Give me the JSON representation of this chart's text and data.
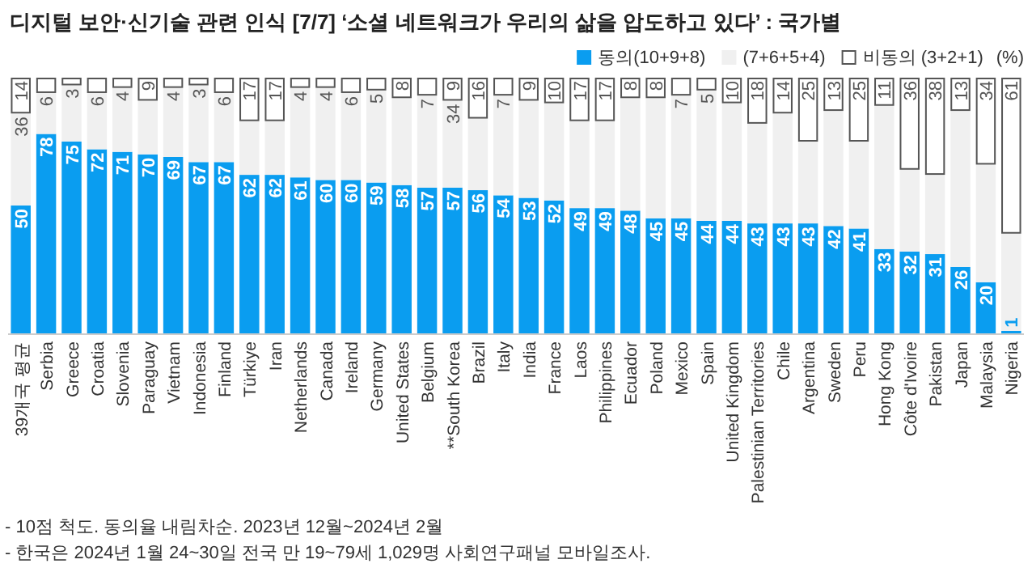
{
  "chart_data": {
    "type": "bar",
    "stacked": true,
    "title": "디지털 보안·신기술 관련 인식 [7/7] ‘소셜 네트워크가 우리의 삶을 압도하고 있다’ : 국가별",
    "legend_title": "(%)",
    "legend": "top right",
    "tick_labels": "x",
    "categories": [
      "39개국 평균",
      "Serbia",
      "Greece",
      "Croatia",
      "Slovenia",
      "Paraguay",
      "Vietnam",
      "Indonesia",
      "Finland",
      "Türkiye",
      "Iran",
      "Netherlands",
      "Canada",
      "Ireland",
      "Germany",
      "United States",
      "Belgium",
      "**South Korea",
      "Brazil",
      "Italy",
      "India",
      "France",
      "Laos",
      "Philippines",
      "Ecuador",
      "Poland",
      "Mexico",
      "Spain",
      "United Kingdom",
      "Palestinian Territories",
      "Chile",
      "Argentina",
      "Sweden",
      "Peru",
      "Hong Kong",
      "Côte d'Ivoire",
      "Pakistan",
      "Japan",
      "Malaysia",
      "Nigeria"
    ],
    "series": [
      {
        "name": "동의(10+9+8)",
        "color": "#0a9df0",
        "values": [
          50,
          78,
          75,
          72,
          71,
          70,
          69,
          67,
          67,
          62,
          62,
          61,
          60,
          60,
          59,
          58,
          57,
          57,
          56,
          54,
          53,
          52,
          49,
          49,
          48,
          45,
          45,
          44,
          44,
          43,
          43,
          43,
          42,
          41,
          33,
          32,
          31,
          26,
          20,
          1
        ],
        "value_labels": [
          "50",
          "78",
          "75",
          "72",
          "71",
          "70",
          "69",
          "67",
          "67",
          "62",
          "62",
          "61",
          "60",
          "60",
          "59",
          "58",
          "57",
          "57",
          "56",
          "54",
          "53",
          "52",
          "49",
          "49",
          "48",
          "45",
          "45",
          "44",
          "44",
          "43",
          "43",
          "43",
          "42",
          "41",
          "33",
          "32",
          "31",
          "26",
          "20",
          "1"
        ]
      },
      {
        "name": "(7+6+5+4)",
        "color": "#f0f0f0",
        "values": [
          36,
          16,
          22,
          22,
          25,
          21,
          27,
          30,
          27,
          21,
          21,
          35,
          36,
          34,
          36,
          34,
          36,
          34,
          28,
          39,
          38,
          38,
          34,
          34,
          44,
          47,
          48,
          51,
          46,
          39,
          43,
          32,
          45,
          34,
          56,
          32,
          31,
          61,
          46,
          38
        ],
        "value_labels": [
          "36",
          null,
          null,
          null,
          null,
          null,
          null,
          null,
          null,
          null,
          null,
          null,
          null,
          null,
          null,
          null,
          null,
          "34",
          null,
          null,
          null,
          null,
          null,
          null,
          null,
          null,
          null,
          null,
          null,
          null,
          null,
          null,
          null,
          null,
          null,
          null,
          null,
          null,
          null,
          null
        ]
      },
      {
        "name": "비동의 (3+2+1)",
        "color": "#ffffff",
        "values": [
          14,
          6,
          3,
          6,
          4,
          9,
          4,
          3,
          6,
          17,
          17,
          4,
          4,
          6,
          5,
          8,
          7,
          9,
          16,
          7,
          9,
          10,
          17,
          17,
          8,
          8,
          7,
          5,
          10,
          18,
          14,
          25,
          13,
          25,
          11,
          36,
          38,
          13,
          34,
          61
        ],
        "value_labels": [
          "14",
          "6",
          "3",
          "6",
          "4",
          "9",
          "4",
          "3",
          "6",
          "17",
          "17",
          "4",
          "4",
          "6",
          "5",
          "8",
          "7",
          "9",
          "16",
          "7",
          "9",
          "10",
          "17",
          "17",
          "8",
          "8",
          "7",
          "5",
          "10",
          "18",
          "14",
          "25",
          "13",
          "25",
          "11",
          "36",
          "38",
          "13",
          "34",
          "61"
        ]
      }
    ],
    "annotations": [
      "- 10점 척도. 동의율 내림차순. 2023년 12월~2024년 2월",
      "- 한국은 2024년 1월 24~30일 전국 만 19~79세 1,029명 사회연구패널 모바일조사."
    ]
  }
}
